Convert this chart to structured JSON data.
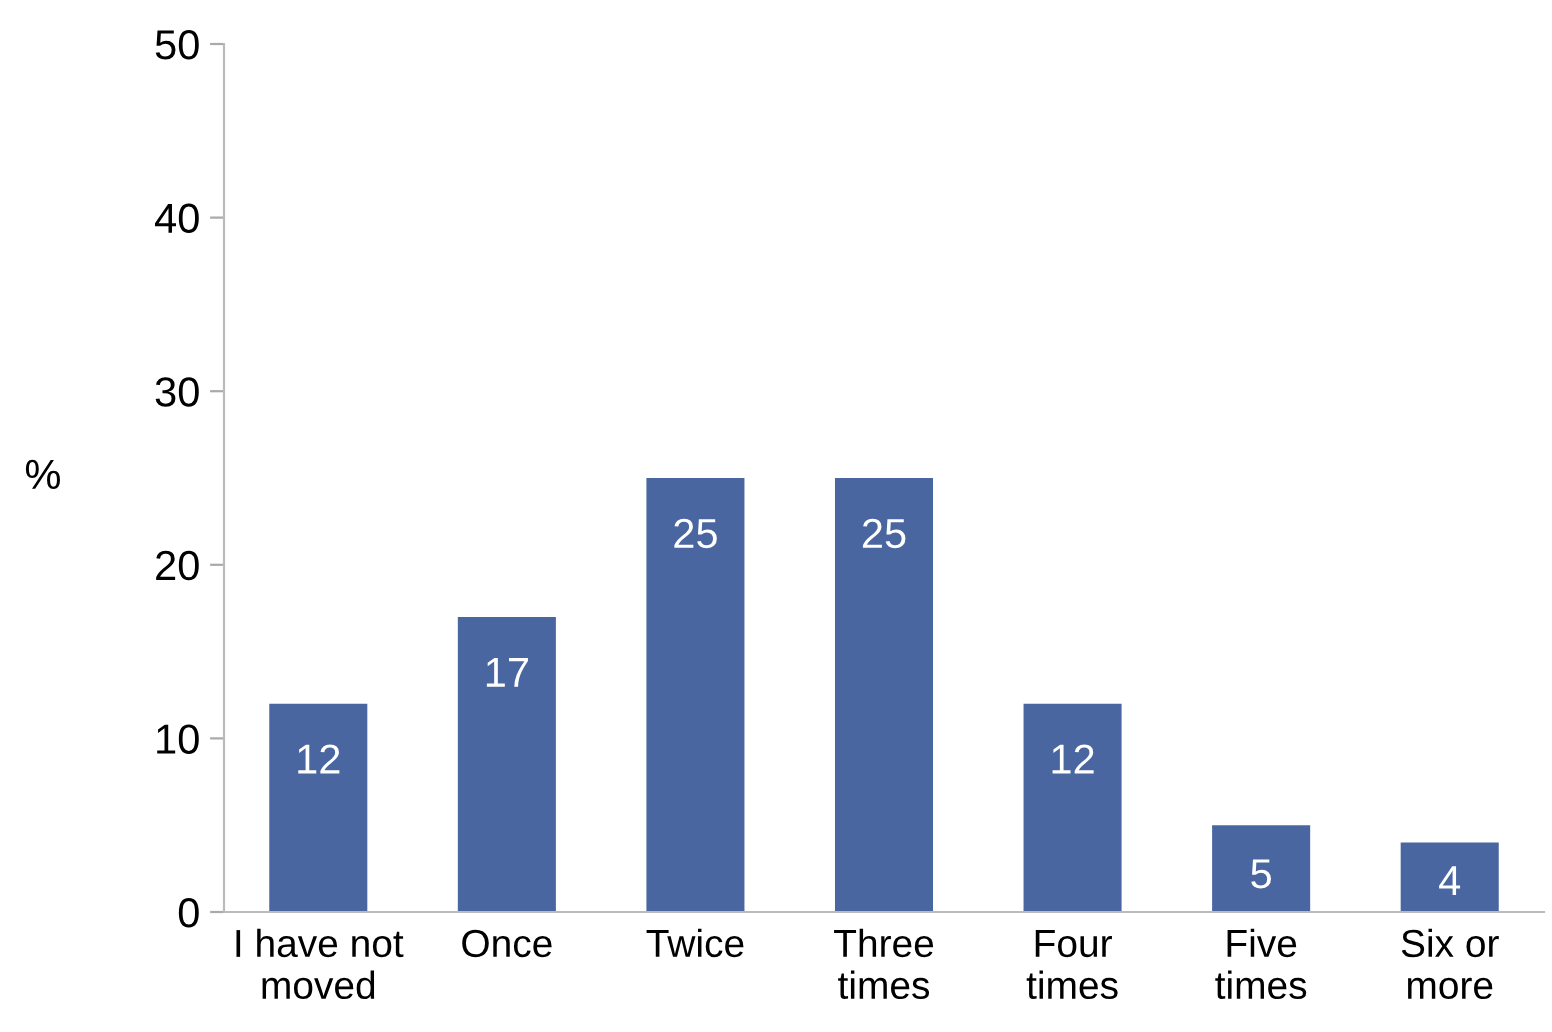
{
  "chart_data": {
    "type": "bar",
    "ylabel": "%",
    "categories": [
      "I have not\nmoved",
      "Once",
      "Twice",
      "Three\ntimes",
      "Four\ntimes",
      "Five\ntimes",
      "Six or\nmore"
    ],
    "values": [
      12,
      17,
      25,
      25,
      12,
      5,
      4
    ],
    "color": "#4a66a1",
    "ylim": [
      0,
      50
    ],
    "yticks": [
      0,
      10,
      20,
      30,
      40,
      50
    ],
    "data_labels": true,
    "grid": false,
    "legend": false
  }
}
